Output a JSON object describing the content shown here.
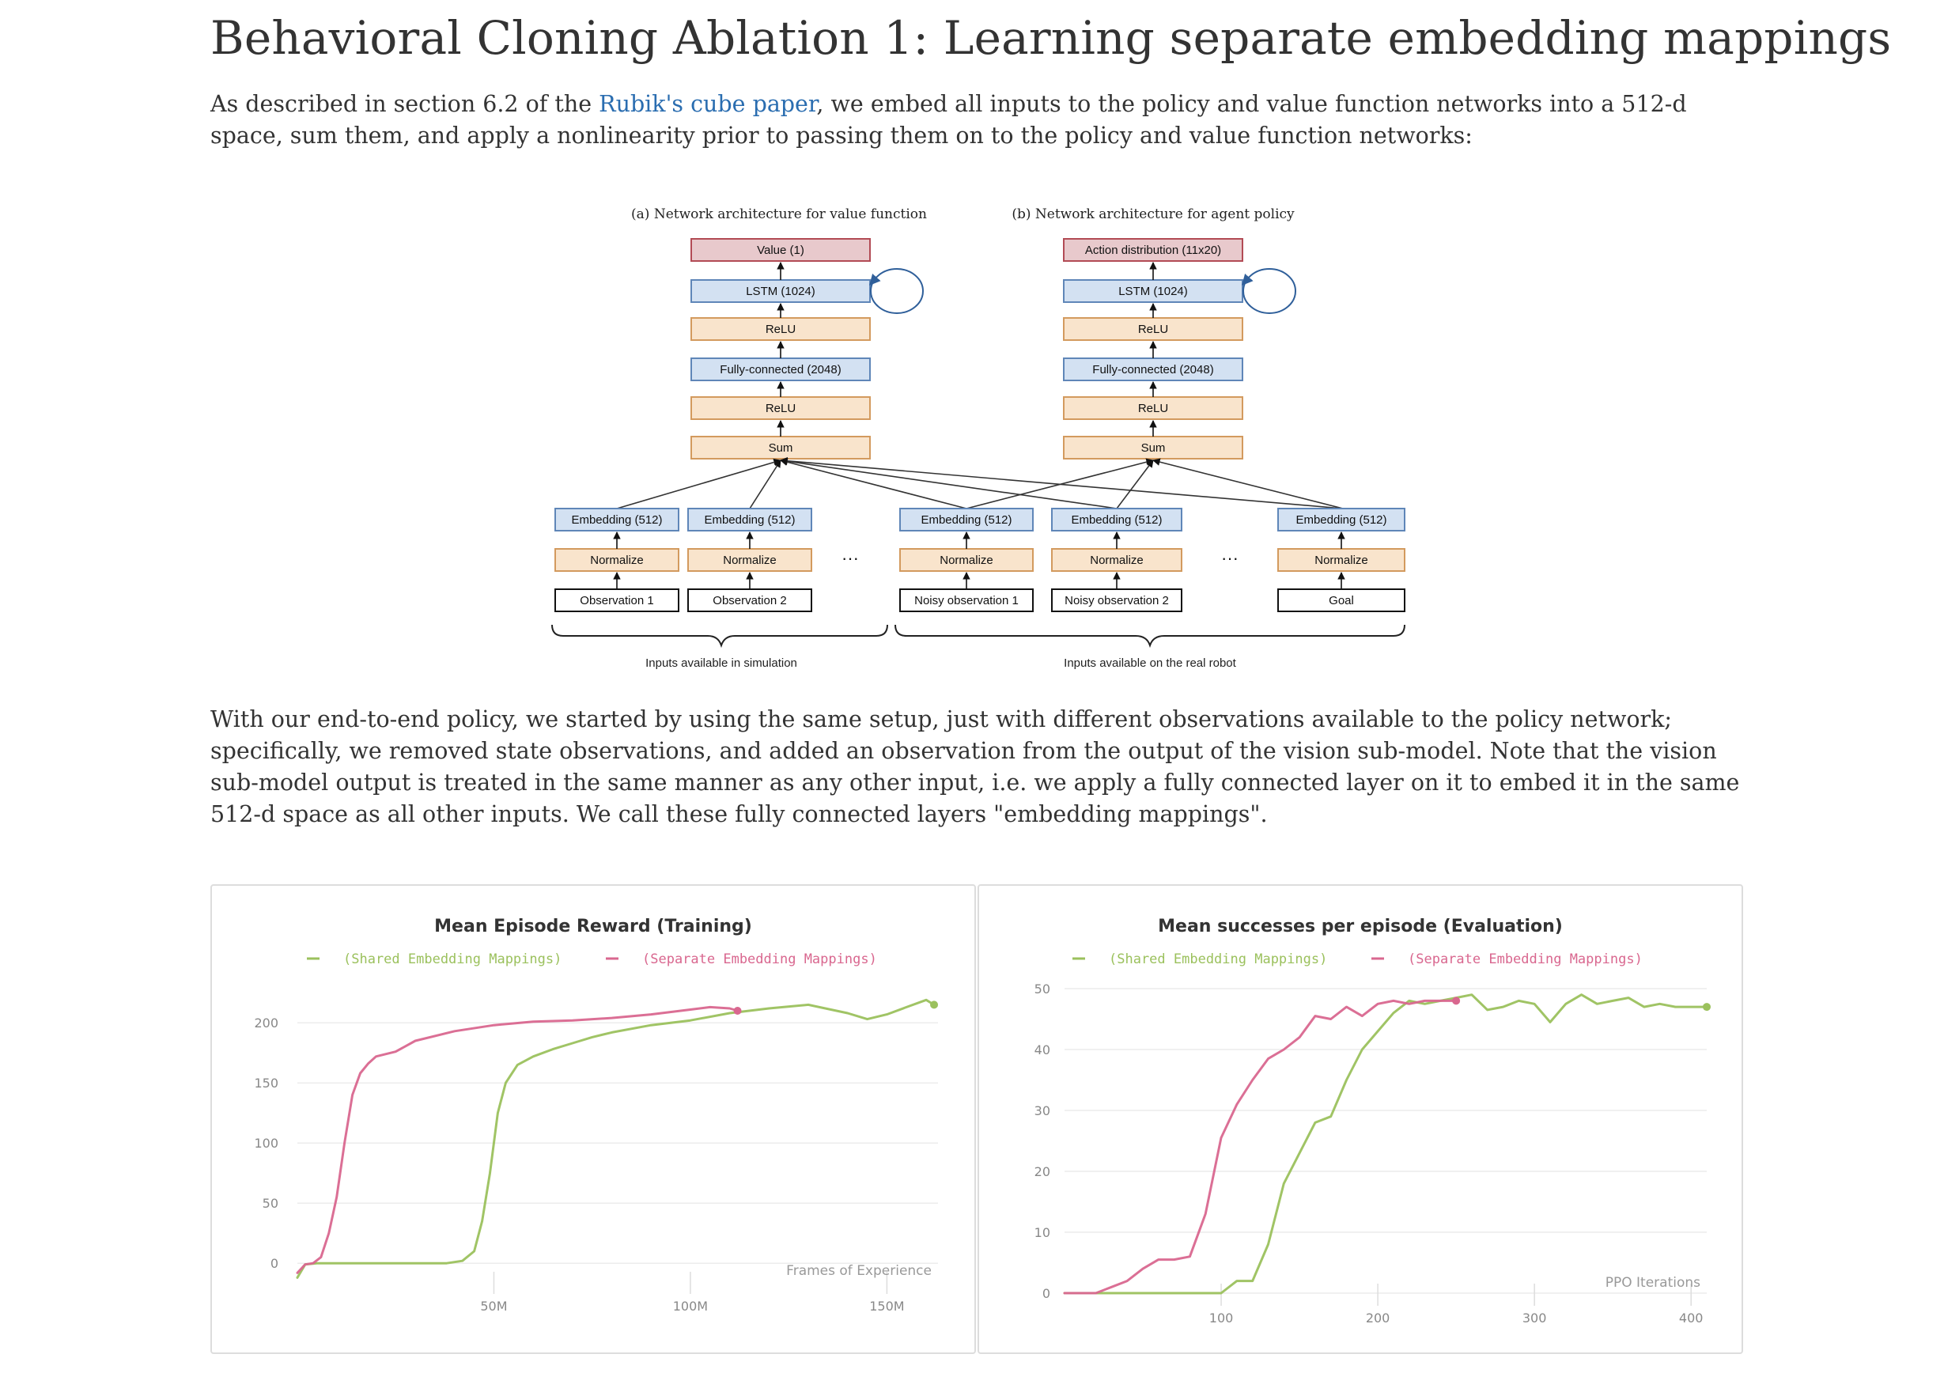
{
  "page": {
    "title": "Behavioral Cloning Ablation 1: Learning separate embedding mappings",
    "para1_before": "As described in section 6.2 of the ",
    "para1_link": "Rubik's cube paper",
    "para1_after": ", we embed all inputs to the policy and value function networks into a 512-d space, sum them, and apply a nonlinearity prior to passing them on to the policy and value function networks:",
    "para2": "With our end-to-end policy, we started by using the same setup, just with different observations available to the policy network; specifically, we removed state observations, and added an observation from the output of the vision sub-model. Note that the vision sub-model output is treated in the same manner as any other input, i.e. we apply a fully connected layer on it to embed it in the same 512-d space as all other inputs. We call these fully connected layers \"embedding mappings\"."
  },
  "diagram": {
    "caption_a": "(a) Network architecture for value function",
    "caption_b": "(b) Network architecture for agent policy",
    "value_out": "Value (1)",
    "action_out": "Action distribution (11x20)",
    "lstm": "LSTM (1024)",
    "relu": "ReLU",
    "fc": "Fully-connected (2048)",
    "sum": "Sum",
    "embedding": "Embedding (512)",
    "normalize": "Normalize",
    "obs1": "Observation 1",
    "obs2": "Observation 2",
    "noisy1": "Noisy observation 1",
    "noisy2": "Noisy observation 2",
    "goal": "Goal",
    "ellipsis": "···",
    "brace_sim": "Inputs available in simulation",
    "brace_real": "Inputs available on the real robot",
    "colors": {
      "red_fill": "#e8c9cc",
      "red_stroke": "#b24b55",
      "blue_fill": "#d3e1f2",
      "blue_stroke": "#5f86b8",
      "orange_fill": "#f9e4cc",
      "orange_stroke": "#d39a5e"
    }
  },
  "chart_data": [
    {
      "type": "line",
      "title": "Mean Episode Reward (Training)",
      "xlabel": "Frames of Experience",
      "ylabel": "",
      "xlim": [
        0,
        163000000
      ],
      "ylim": [
        -15,
        235
      ],
      "xticks": [
        50000000,
        100000000,
        150000000
      ],
      "xtick_labels": [
        "50M",
        "100M",
        "150M"
      ],
      "yticks": [
        0,
        50,
        100,
        150,
        200
      ],
      "yticks_labels": [
        "0",
        "50",
        "100",
        "150",
        "200"
      ],
      "grid": "horizontal",
      "legend_position": "top-center",
      "series": [
        {
          "name": "(Shared Embedding Mappings)",
          "color": "#9bc15d",
          "x": [
            0,
            2000000,
            5000000,
            10000000,
            20000000,
            30000000,
            38000000,
            42000000,
            45000000,
            47000000,
            49000000,
            51000000,
            53000000,
            56000000,
            60000000,
            65000000,
            70000000,
            75000000,
            80000000,
            90000000,
            100000000,
            110000000,
            120000000,
            130000000,
            140000000,
            145000000,
            150000000,
            155000000,
            160000000,
            162000000
          ],
          "y": [
            -12,
            -1,
            0,
            0,
            0,
            0,
            0,
            2,
            10,
            35,
            75,
            125,
            150,
            165,
            172,
            178,
            183,
            188,
            192,
            198,
            202,
            208,
            212,
            215,
            208,
            203,
            207,
            213,
            219,
            215
          ]
        },
        {
          "name": "(Separate Embedding Mappings)",
          "color": "#d9678f",
          "x": [
            0,
            2000000,
            4000000,
            6000000,
            8000000,
            10000000,
            12000000,
            14000000,
            16000000,
            18000000,
            20000000,
            25000000,
            30000000,
            40000000,
            50000000,
            60000000,
            70000000,
            80000000,
            90000000,
            100000000,
            105000000,
            110000000,
            112000000
          ],
          "y": [
            -8,
            -1,
            0,
            5,
            25,
            55,
            100,
            140,
            158,
            166,
            172,
            176,
            185,
            193,
            198,
            201,
            202,
            204,
            207,
            211,
            213,
            212,
            210
          ]
        }
      ]
    },
    {
      "type": "line",
      "title": "Mean successes per episode (Evaluation)",
      "xlabel": "PPO Iterations",
      "ylabel": "",
      "xlim": [
        0,
        410
      ],
      "ylim": [
        0,
        50
      ],
      "xticks": [
        100,
        200,
        300,
        400
      ],
      "xtick_labels": [
        "100",
        "200",
        "300",
        "400"
      ],
      "yticks": [
        0,
        10,
        20,
        30,
        40,
        50
      ],
      "yticks_labels": [
        "0",
        "10",
        "20",
        "30",
        "40",
        "50"
      ],
      "grid": "horizontal",
      "legend_position": "top-center",
      "series": [
        {
          "name": "(Shared Embedding Mappings)",
          "color": "#9bc15d",
          "x": [
            0,
            20,
            40,
            60,
            80,
            90,
            100,
            110,
            115,
            120,
            130,
            140,
            150,
            160,
            170,
            180,
            190,
            200,
            210,
            220,
            230,
            240,
            250,
            260,
            270,
            280,
            290,
            300,
            310,
            320,
            330,
            340,
            350,
            360,
            370,
            380,
            390,
            400,
            410
          ],
          "y": [
            0,
            0,
            0,
            0,
            0,
            0,
            0,
            2,
            2,
            2,
            8,
            18,
            23,
            28,
            29,
            35,
            40,
            43,
            46,
            48,
            47.5,
            48,
            48.5,
            49,
            46.5,
            47,
            48,
            47.5,
            44.5,
            47.5,
            49,
            47.5,
            48,
            48.5,
            47,
            47.5,
            47,
            47,
            47
          ]
        },
        {
          "name": "(Separate Embedding Mappings)",
          "color": "#d9678f",
          "x": [
            0,
            10,
            20,
            30,
            40,
            50,
            60,
            70,
            80,
            90,
            100,
            110,
            120,
            130,
            140,
            150,
            160,
            170,
            180,
            190,
            200,
            210,
            220,
            230,
            240,
            250
          ],
          "y": [
            0,
            0,
            0,
            1,
            2,
            4,
            5.5,
            5.5,
            6,
            13,
            25.5,
            31,
            35,
            38.5,
            40,
            42,
            45.5,
            45,
            47,
            45.5,
            47.5,
            48,
            47.5,
            48,
            48,
            48
          ]
        }
      ]
    }
  ]
}
